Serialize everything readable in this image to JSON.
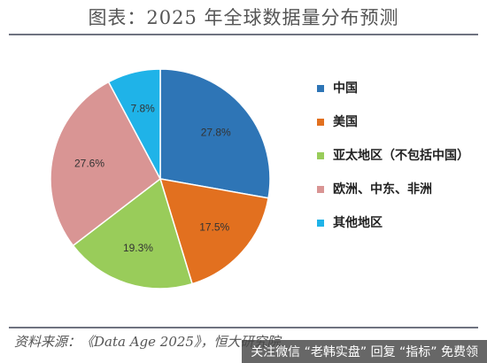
{
  "title": "图表：2025 年全球数据量分布预测",
  "source": "资料来源：《Data Age 2025》，恒大研究院",
  "watermark": "关注微信 “老韩实盘” 回复 “指标” 免费领",
  "chart_data": {
    "type": "pie",
    "title": "图表：2025 年全球数据量分布预测",
    "start_angle_deg": 0,
    "direction": "clockwise",
    "slices": [
      {
        "name": "中国",
        "value": 27.8,
        "label": "27.8%",
        "color": "#2e75b6"
      },
      {
        "name": "美国",
        "value": 17.5,
        "label": "17.5%",
        "color": "#e2701f"
      },
      {
        "name": "亚太地区（不包括中国）",
        "value": 19.3,
        "label": "19.3%",
        "color": "#99cc5a"
      },
      {
        "name": "欧洲、中东、非洲",
        "value": 27.6,
        "label": "27.6%",
        "color": "#d99594"
      },
      {
        "name": "其他地区",
        "value": 7.8,
        "label": "7.8%",
        "color": "#1fb3e8"
      }
    ],
    "legend_position": "right"
  }
}
